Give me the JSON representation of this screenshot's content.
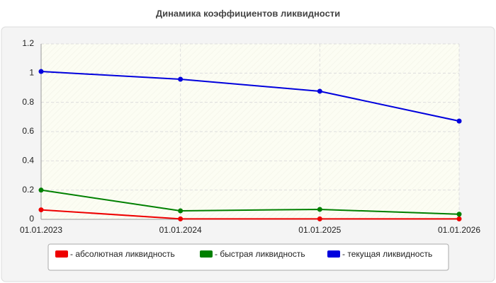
{
  "chart_data": {
    "type": "line",
    "title": "Динамика коэффициентов ликвидности",
    "categories": [
      "01.01.2023",
      "01.01.2024",
      "01.01.2025",
      "01.01.2026"
    ],
    "series": [
      {
        "name": "- абсолютная ликвидность",
        "color": "#ee0000",
        "values": [
          0.065,
          0.003,
          0.003,
          0.003
        ]
      },
      {
        "name": "- быстрая ликвидность",
        "color": "#008000",
        "values": [
          0.2,
          0.058,
          0.068,
          0.035
        ]
      },
      {
        "name": "- текущая ликвидность",
        "color": "#0000dd",
        "values": [
          1.011,
          0.958,
          0.876,
          0.672
        ]
      }
    ],
    "ylim": [
      0,
      1.2
    ],
    "yticks": [
      0,
      0.2,
      0.4,
      0.6,
      0.8,
      1,
      1.2
    ],
    "grid": true
  }
}
